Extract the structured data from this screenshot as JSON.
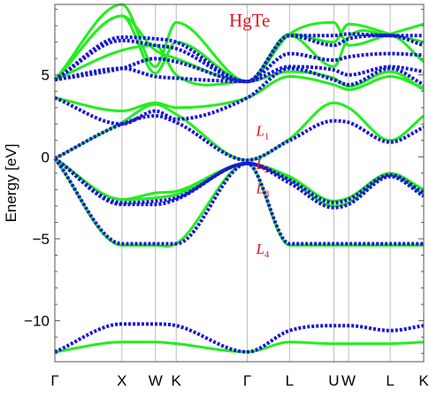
{
  "chart_data": {
    "type": "line",
    "title": "HgTe",
    "ylabel": "Energy [eV]",
    "xlabel": "",
    "ylim": [
      -12.5,
      9.3
    ],
    "grid": "vertical lines at high-symmetry points",
    "y_ticks": [
      5,
      0,
      -5,
      -10
    ],
    "y_tick_labels": [
      "5",
      "0",
      "−5",
      "−10"
    ],
    "x": [
      0,
      1,
      1.5,
      1.81,
      2.87,
      3.5,
      4.16,
      4.38,
      5.0,
      5.5
    ],
    "x_tick_labels": [
      "Γ",
      "X",
      "W",
      "K",
      "Γ",
      "L",
      "U",
      "W",
      "L",
      "K"
    ],
    "colors": {
      "series_1": "#22ee1d",
      "series_2": "#1a17d6",
      "annotation": "#e8121a"
    },
    "annotations": [
      {
        "text": "L",
        "sub": "1",
        "at": [
          3.0,
          1.6
        ]
      },
      {
        "text": "L",
        "sub": "2",
        "at": [
          3.0,
          -0.4
        ]
      },
      {
        "text": "L",
        "sub": "3",
        "at": [
          3.0,
          -1.9
        ]
      },
      {
        "text": "L",
        "sub": "4",
        "at": [
          3.0,
          -5.6
        ]
      }
    ],
    "series": [
      {
        "style": "solid",
        "bands": [
          [
            -11.9,
            -11.3,
            -11.3,
            -11.4,
            -11.9,
            -11.3,
            -11.4,
            -11.4,
            -11.4,
            -11.3
          ],
          [
            -0.1,
            -5.4,
            -5.4,
            -5.3,
            -0.4,
            -5.4,
            -5.4,
            -5.4,
            -5.4,
            -5.4
          ],
          [
            -0.1,
            -2.6,
            -2.2,
            -2.1,
            -0.4,
            -1.2,
            -2.7,
            -2.5,
            -1.0,
            -2.0
          ],
          [
            -0.1,
            -2.6,
            -2.5,
            -2.3,
            -0.4,
            -1.4,
            -3.0,
            -2.8,
            -1.1,
            -2.3
          ],
          [
            -0.1,
            2.1,
            3.2,
            2.6,
            -0.2,
            1.1,
            3.3,
            3.0,
            1.0,
            2.5
          ],
          [
            3.6,
            2.8,
            3.3,
            3.0,
            3.6,
            4.9,
            4.4,
            4.1,
            4.9,
            4.2
          ],
          [
            4.7,
            9.3,
            5.5,
            8.2,
            4.6,
            7.5,
            8.2,
            6.8,
            7.5,
            8.1
          ],
          [
            4.7,
            8.6,
            5.1,
            7.0,
            4.6,
            7.5,
            7.0,
            8.1,
            7.5,
            7.0
          ],
          [
            4.7,
            8.6,
            6.5,
            6.0,
            4.6,
            7.4,
            5.5,
            7.3,
            7.4,
            5.8
          ],
          [
            4.7,
            6.5,
            6.8,
            5.0,
            4.6,
            5.2,
            4.8,
            4.3,
            5.2,
            4.1
          ]
        ]
      },
      {
        "style": "dotted",
        "bands": [
          [
            -11.9,
            -10.2,
            -10.2,
            -10.3,
            -11.9,
            -10.6,
            -10.3,
            -10.3,
            -10.6,
            -10.3
          ],
          [
            -0.1,
            -5.3,
            -5.3,
            -5.3,
            -0.4,
            -5.3,
            -5.3,
            -5.3,
            -5.3,
            -5.3
          ],
          [
            -0.1,
            -2.8,
            -2.7,
            -2.5,
            -0.4,
            -1.4,
            -2.8,
            -2.6,
            -1.1,
            -2.2
          ],
          [
            -0.1,
            -2.9,
            -2.9,
            -2.6,
            -0.4,
            -1.6,
            -3.1,
            -2.9,
            -1.2,
            -2.4
          ],
          [
            -0.1,
            2.0,
            2.5,
            2.1,
            -0.2,
            1.0,
            2.2,
            2.1,
            0.9,
            1.8
          ],
          [
            3.6,
            2.0,
            2.8,
            2.3,
            3.6,
            5.4,
            4.7,
            4.4,
            5.4,
            4.4
          ],
          [
            4.7,
            7.3,
            7.2,
            7.0,
            4.6,
            7.4,
            7.4,
            7.5,
            7.4,
            7.4
          ],
          [
            4.7,
            7.1,
            6.8,
            6.6,
            4.6,
            7.4,
            6.8,
            7.2,
            7.4,
            6.8
          ],
          [
            4.7,
            5.4,
            6.0,
            5.8,
            4.6,
            6.3,
            5.9,
            6.1,
            6.3,
            6.2
          ],
          [
            4.7,
            5.4,
            4.9,
            4.8,
            4.6,
            5.5,
            5.3,
            5.0,
            5.5,
            5.2
          ]
        ]
      }
    ]
  }
}
